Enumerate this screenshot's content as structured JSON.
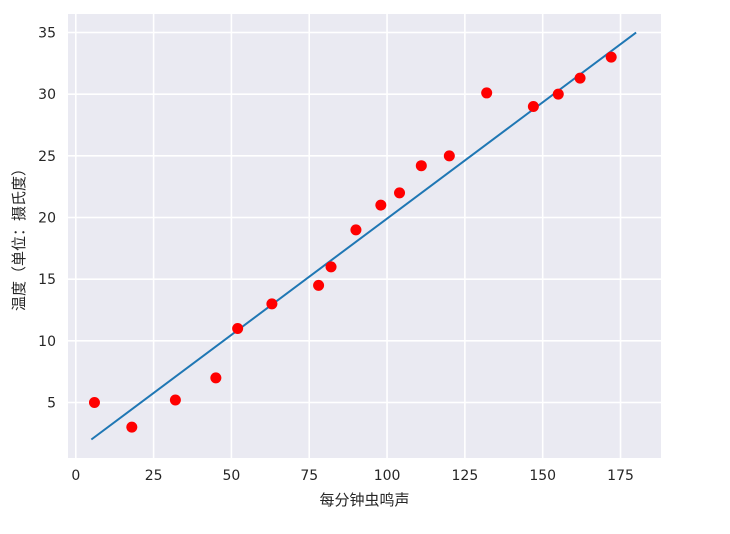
{
  "chart_data": {
    "type": "scatter",
    "title": "",
    "xlabel": "每分钟虫鸣声",
    "ylabel": "温度（单位：摄氏度）",
    "xlim": [
      -2.5,
      188
    ],
    "ylim": [
      0.5,
      36.5
    ],
    "x_ticks": [
      0,
      25,
      50,
      75,
      100,
      125,
      150,
      175
    ],
    "y_ticks": [
      5,
      10,
      15,
      20,
      25,
      30,
      35
    ],
    "grid": true,
    "background": "#eaeaf2",
    "scatter_color": "#ff0000",
    "line_color": "#1f77b4",
    "points": [
      {
        "x": 6,
        "y": 5
      },
      {
        "x": 18,
        "y": 3
      },
      {
        "x": 32,
        "y": 5.2
      },
      {
        "x": 45,
        "y": 7
      },
      {
        "x": 52,
        "y": 11
      },
      {
        "x": 63,
        "y": 13
      },
      {
        "x": 78,
        "y": 14.5
      },
      {
        "x": 82,
        "y": 16
      },
      {
        "x": 90,
        "y": 19
      },
      {
        "x": 98,
        "y": 21
      },
      {
        "x": 104,
        "y": 22
      },
      {
        "x": 111,
        "y": 24.2
      },
      {
        "x": 120,
        "y": 25
      },
      {
        "x": 132,
        "y": 30.1
      },
      {
        "x": 147,
        "y": 29
      },
      {
        "x": 155,
        "y": 30
      },
      {
        "x": 162,
        "y": 31.3
      },
      {
        "x": 172,
        "y": 33
      }
    ],
    "fit_line": {
      "x": [
        5,
        180
      ],
      "y": [
        2,
        35
      ]
    }
  }
}
